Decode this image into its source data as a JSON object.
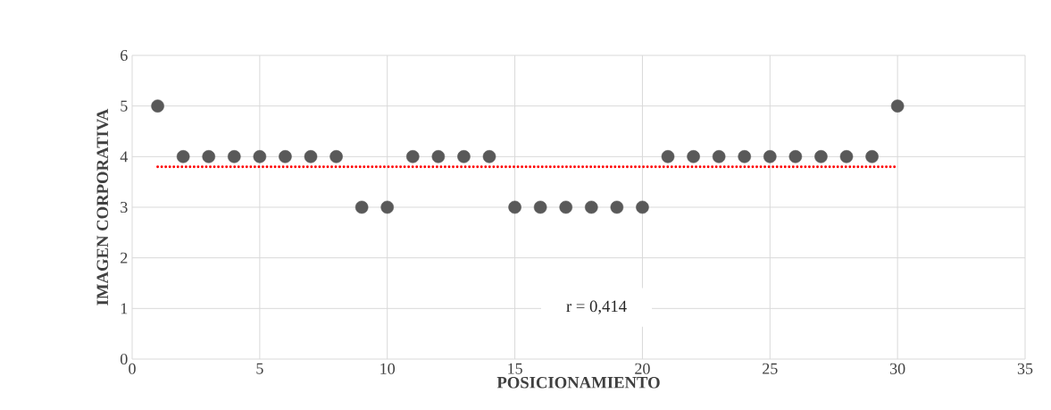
{
  "chart_data": {
    "type": "scatter",
    "xlabel": "POSICIONAMIENTO",
    "ylabel": "IMAGEN CORPORATIVA",
    "annotations": [
      "r = 0,414"
    ],
    "xlim": [
      0,
      35
    ],
    "xticks": [
      0,
      5,
      10,
      15,
      20,
      25,
      30,
      35
    ],
    "ylim": [
      0,
      6
    ],
    "yticks": [
      0,
      1,
      2,
      3,
      4,
      5,
      6
    ],
    "grid": true,
    "marker": "circle",
    "series": [
      {
        "color": "#595959",
        "x": [
          1,
          2,
          3,
          4,
          5,
          6,
          7,
          8,
          9,
          10,
          11,
          12,
          13,
          14,
          15,
          16,
          17,
          18,
          19,
          20,
          21,
          22,
          23,
          24,
          25,
          26,
          27,
          28,
          29,
          30
        ],
        "values": [
          5,
          4,
          4,
          4,
          4,
          4,
          4,
          4,
          3,
          3,
          4,
          4,
          4,
          4,
          3,
          3,
          3,
          3,
          3,
          3,
          4,
          4,
          4,
          4,
          4,
          4,
          4,
          4,
          4,
          5
        ]
      },
      {
        "type": "line",
        "color": "#ff0000",
        "line_style": "dotted",
        "marker": "none",
        "x": [
          1,
          30
        ],
        "values": [
          3.8,
          3.8
        ]
      }
    ]
  }
}
